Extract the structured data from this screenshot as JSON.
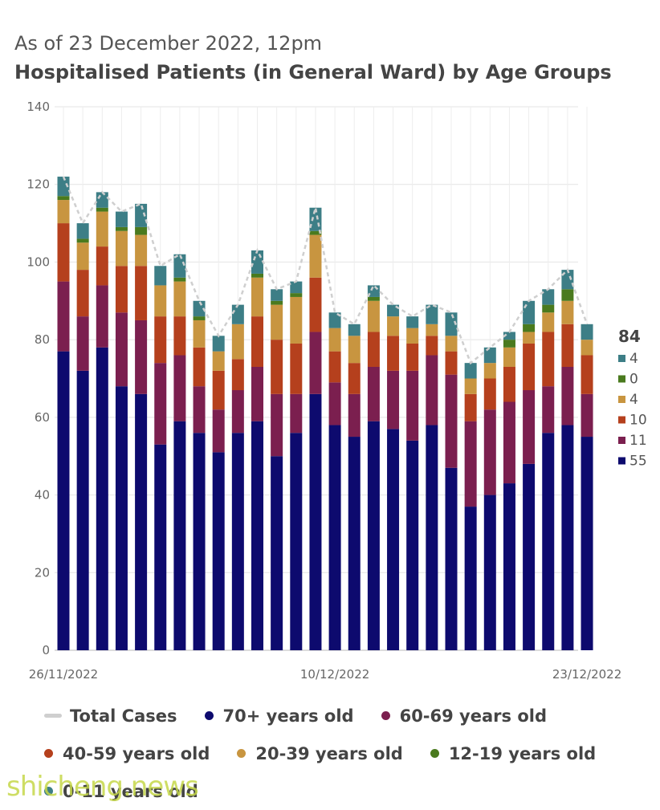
{
  "header": {
    "subtitle": "As of 23 December 2022, 12pm",
    "title": "Hospitalised Patients (in General Ward) by Age Groups"
  },
  "chart_data": {
    "type": "bar",
    "stacked": true,
    "ylim": [
      0,
      140
    ],
    "yticks": [
      0,
      20,
      40,
      60,
      80,
      100,
      120,
      140
    ],
    "x_tick_labels": [
      "26/11/2022",
      "10/12/2022",
      "23/12/2022"
    ],
    "grid": true,
    "categories": [
      "26/11",
      "27/11",
      "28/11",
      "29/11",
      "30/11",
      "01/12",
      "02/12",
      "03/12",
      "04/12",
      "05/12",
      "06/12",
      "07/12",
      "08/12",
      "09/12",
      "10/12",
      "11/12",
      "12/12",
      "13/12",
      "14/12",
      "15/12",
      "16/12",
      "17/12",
      "18/12",
      "19/12",
      "20/12",
      "21/12",
      "22/12",
      "23/12"
    ],
    "series": [
      {
        "name": "70+ years old",
        "color": "#0d0a6e",
        "values": [
          77,
          72,
          78,
          68,
          66,
          53,
          59,
          56,
          51,
          56,
          59,
          50,
          56,
          66,
          58,
          55,
          59,
          57,
          54,
          58,
          47,
          37,
          40,
          43,
          48,
          56,
          58,
          55
        ]
      },
      {
        "name": "60-69 years old",
        "color": "#7b1f4f",
        "values": [
          18,
          14,
          16,
          19,
          19,
          21,
          17,
          12,
          11,
          11,
          14,
          16,
          10,
          16,
          11,
          11,
          14,
          15,
          18,
          18,
          24,
          22,
          22,
          21,
          19,
          12,
          15,
          11
        ]
      },
      {
        "name": "40-59 years old",
        "color": "#b5401d",
        "values": [
          15,
          12,
          10,
          12,
          14,
          12,
          10,
          10,
          10,
          8,
          13,
          14,
          13,
          14,
          8,
          8,
          9,
          9,
          7,
          5,
          6,
          7,
          8,
          9,
          12,
          14,
          11,
          10
        ]
      },
      {
        "name": "20-39 years old",
        "color": "#c89540",
        "values": [
          6,
          7,
          9,
          9,
          8,
          8,
          9,
          7,
          5,
          9,
          10,
          9,
          12,
          11,
          6,
          7,
          8,
          5,
          4,
          3,
          4,
          4,
          4,
          5,
          3,
          5,
          6,
          4
        ]
      },
      {
        "name": "12-19 years old",
        "color": "#4a7a1e",
        "values": [
          1,
          1,
          1,
          1,
          2,
          0,
          1,
          1,
          0,
          0,
          1,
          1,
          1,
          1,
          0,
          0,
          1,
          0,
          0,
          0,
          0,
          0,
          0,
          2,
          2,
          2,
          3,
          0
        ]
      },
      {
        "name": "0-11 years old",
        "color": "#3d7e86",
        "values": [
          5,
          4,
          4,
          4,
          6,
          5,
          6,
          4,
          4,
          5,
          6,
          3,
          3,
          6,
          4,
          3,
          3,
          3,
          3,
          5,
          6,
          4,
          4,
          2,
          6,
          4,
          5,
          4
        ]
      }
    ],
    "total_cases": {
      "name": "Total Cases",
      "color": "#cfcfcf",
      "values": [
        122,
        110,
        118,
        113,
        115,
        99,
        102,
        90,
        81,
        89,
        103,
        93,
        95,
        114,
        87,
        84,
        94,
        89,
        86,
        89,
        87,
        74,
        78,
        82,
        90,
        93,
        98,
        84
      ]
    },
    "latest_total": "84",
    "latest_labels": [
      "4",
      "0",
      "4",
      "10",
      "11",
      "55"
    ],
    "latest_label_colors": [
      "#3d7e86",
      "#4a7a1e",
      "#c89540",
      "#b5401d",
      "#7b1f4f",
      "#0d0a6e"
    ]
  },
  "legend": {
    "items": [
      {
        "label": "Total Cases",
        "color": "#cfcfcf",
        "kind": "line"
      },
      {
        "label": "70+ years old",
        "color": "#0d0a6e",
        "kind": "dot"
      },
      {
        "label": "60-69 years old",
        "color": "#7b1f4f",
        "kind": "dot"
      },
      {
        "label": "40-59 years old",
        "color": "#b5401d",
        "kind": "dot"
      },
      {
        "label": "20-39 years old",
        "color": "#c89540",
        "kind": "dot"
      },
      {
        "label": "12-19 years old",
        "color": "#4a7a1e",
        "kind": "dot"
      },
      {
        "label": "0-11 years old",
        "color": "#3d7e86",
        "kind": "dot"
      }
    ]
  },
  "watermark": "shicheng.news"
}
